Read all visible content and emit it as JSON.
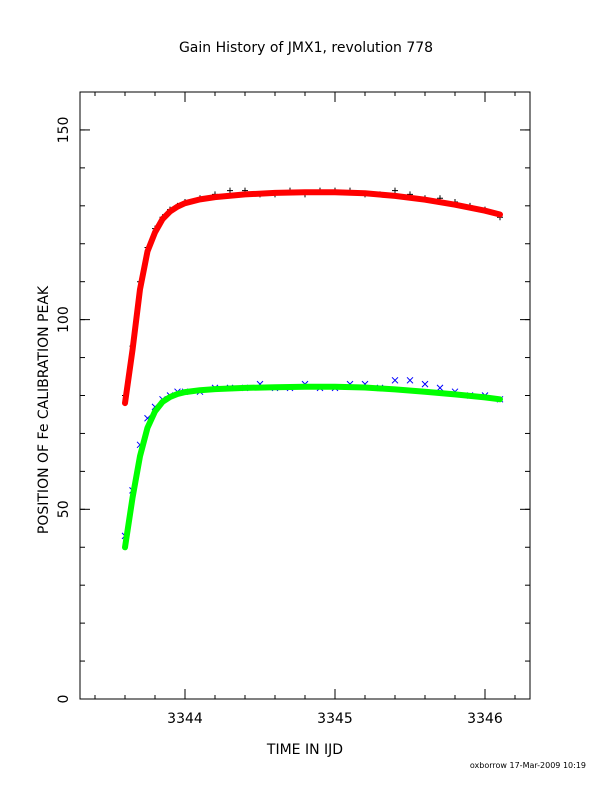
{
  "chart_data": {
    "type": "scatter",
    "title": "Gain History of JMX1, revolution 778",
    "xlabel": "TIME IN IJD",
    "ylabel": "POSITION OF Fe CALIBRATION PEAK",
    "xlim": [
      3343.3,
      3346.3
    ],
    "ylim": [
      0,
      160
    ],
    "x_ticks": [
      {
        "value": 3344,
        "label": "3344"
      },
      {
        "value": 3345,
        "label": "3345"
      },
      {
        "value": 3346,
        "label": "3346"
      }
    ],
    "y_ticks": [
      {
        "value": 0,
        "label": "0"
      },
      {
        "value": 50,
        "label": "50"
      },
      {
        "value": 100,
        "label": "100"
      },
      {
        "value": 150,
        "label": "150"
      }
    ],
    "x_minor_step": 0.2,
    "y_minor_step": 10,
    "grid": false,
    "footer": "oxborrow 17-Mar-2009 10:19",
    "series": [
      {
        "kind": "points",
        "marker": "plus",
        "color": "#000000",
        "x": [
          3343.6,
          3343.65,
          3343.7,
          3343.75,
          3343.8,
          3343.85,
          3343.9,
          3343.95,
          3344.0,
          3344.1,
          3344.2,
          3344.3,
          3344.4,
          3344.5,
          3344.6,
          3344.7,
          3344.8,
          3344.9,
          3345.0,
          3345.1,
          3345.2,
          3345.3,
          3345.4,
          3345.5,
          3345.6,
          3345.7,
          3345.8,
          3345.9,
          3346.0,
          3346.1
        ],
        "y": [
          80,
          93,
          110,
          119,
          124,
          127,
          129,
          130,
          131,
          132,
          133,
          134,
          134,
          133,
          133,
          134,
          133,
          134,
          134,
          134,
          133,
          133,
          134,
          133,
          132,
          132,
          131,
          130,
          129,
          127
        ]
      },
      {
        "kind": "fit",
        "color": "#ff0000",
        "x": [
          3343.6,
          3343.65,
          3343.7,
          3343.75,
          3343.8,
          3343.85,
          3343.9,
          3343.95,
          3344.0,
          3344.1,
          3344.2,
          3344.4,
          3344.6,
          3344.8,
          3345.0,
          3345.2,
          3345.4,
          3345.6,
          3345.8,
          3346.0,
          3346.1
        ],
        "y": [
          78,
          92,
          108,
          118,
          123,
          126.5,
          128.5,
          129.8,
          130.7,
          131.7,
          132.3,
          133.0,
          133.4,
          133.6,
          133.6,
          133.3,
          132.6,
          131.6,
          130.3,
          128.7,
          127.7
        ]
      },
      {
        "kind": "points",
        "marker": "cross",
        "color": "#0000ff",
        "x": [
          3343.6,
          3343.65,
          3343.7,
          3343.75,
          3343.8,
          3343.85,
          3343.9,
          3343.95,
          3344.0,
          3344.1,
          3344.2,
          3344.3,
          3344.4,
          3344.5,
          3344.6,
          3344.7,
          3344.8,
          3344.9,
          3345.0,
          3345.1,
          3345.2,
          3345.3,
          3345.4,
          3345.5,
          3345.6,
          3345.7,
          3345.8,
          3345.9,
          3346.0,
          3346.1
        ],
        "y": [
          43,
          55,
          67,
          74,
          77,
          79,
          80,
          81,
          81,
          81,
          82,
          82,
          82,
          83,
          82,
          82,
          83,
          82,
          82,
          83,
          83,
          82,
          84,
          84,
          83,
          82,
          81,
          80,
          80,
          79
        ]
      },
      {
        "kind": "fit",
        "color": "#00ff00",
        "x": [
          3343.6,
          3343.65,
          3343.7,
          3343.75,
          3343.8,
          3343.85,
          3343.9,
          3343.95,
          3344.0,
          3344.1,
          3344.2,
          3344.4,
          3344.6,
          3344.8,
          3345.0,
          3345.2,
          3345.4,
          3345.6,
          3345.8,
          3346.0,
          3346.1
        ],
        "y": [
          40,
          53,
          64,
          71.5,
          75.8,
          78.3,
          79.6,
          80.4,
          80.9,
          81.4,
          81.7,
          82.0,
          82.2,
          82.3,
          82.3,
          82.1,
          81.6,
          81.0,
          80.3,
          79.5,
          79.0
        ]
      }
    ]
  }
}
